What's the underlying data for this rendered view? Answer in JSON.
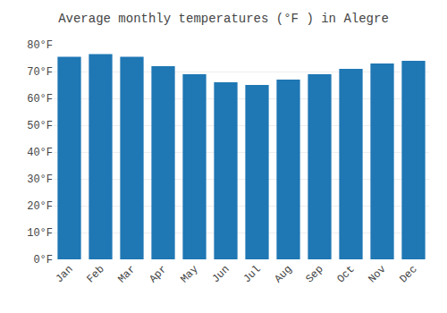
{
  "chart_data": {
    "type": "bar",
    "title": "Average monthly temperatures (°F ) in Alegre",
    "categories": [
      "Jan",
      "Feb",
      "Mar",
      "Apr",
      "May",
      "Jun",
      "Jul",
      "Aug",
      "Sep",
      "Oct",
      "Nov",
      "Dec"
    ],
    "values": [
      75.5,
      76.5,
      75.5,
      72,
      69,
      66,
      65,
      67,
      69,
      71,
      73,
      74
    ],
    "ylim": [
      0,
      80
    ],
    "yticks": [
      {
        "value": 0,
        "label": "0°F"
      },
      {
        "value": 10,
        "label": "10°F"
      },
      {
        "value": 20,
        "label": "20°F"
      },
      {
        "value": 30,
        "label": "30°F"
      },
      {
        "value": 40,
        "label": "40°F"
      },
      {
        "value": 50,
        "label": "50°F"
      },
      {
        "value": 60,
        "label": "60°F"
      },
      {
        "value": 70,
        "label": "70°F"
      },
      {
        "value": 80,
        "label": "80°F"
      }
    ],
    "grid": true
  }
}
